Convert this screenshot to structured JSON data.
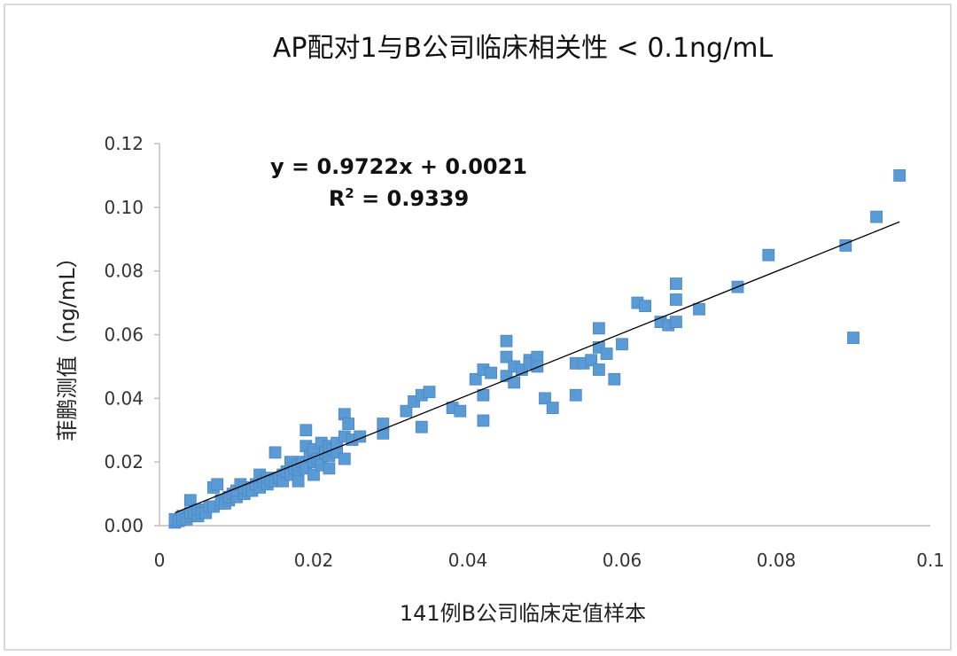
{
  "chart_data": {
    "type": "scatter",
    "title": "AP配对1与B公司临床相关性 < 0.1ng/mL",
    "xlabel": "141例B公司临床定值样本",
    "ylabel": "菲鹏测值（ng/mL）",
    "xlim": [
      0,
      0.1
    ],
    "ylim": [
      0,
      0.12
    ],
    "x_ticks": [
      "0",
      "0.02",
      "0.04",
      "0.06",
      "0.08",
      "0.1"
    ],
    "y_ticks": [
      "0.00",
      "0.02",
      "0.04",
      "0.06",
      "0.08",
      "0.10",
      "0.12"
    ],
    "grid": false,
    "marker_color": "#5b9bd5",
    "trendline_color": "#000000",
    "trendline": {
      "slope": 0.9722,
      "intercept": 0.0021,
      "x_range": [
        0.002,
        0.096
      ]
    },
    "equation": "y = 0.9722x + 0.0021",
    "r_squared_label": "R",
    "r_squared_sup": "2",
    "r_squared_value": " = 0.9339",
    "points": [
      [
        0.002,
        0.001
      ],
      [
        0.002,
        0.002
      ],
      [
        0.0025,
        0.0015
      ],
      [
        0.003,
        0.002
      ],
      [
        0.003,
        0.003
      ],
      [
        0.0035,
        0.002
      ],
      [
        0.004,
        0.003
      ],
      [
        0.004,
        0.004
      ],
      [
        0.004,
        0.008
      ],
      [
        0.0045,
        0.004
      ],
      [
        0.005,
        0.003
      ],
      [
        0.005,
        0.005
      ],
      [
        0.0055,
        0.004
      ],
      [
        0.006,
        0.005
      ],
      [
        0.006,
        0.004
      ],
      [
        0.0065,
        0.006
      ],
      [
        0.007,
        0.006
      ],
      [
        0.007,
        0.012
      ],
      [
        0.0075,
        0.013
      ],
      [
        0.008,
        0.007
      ],
      [
        0.008,
        0.008
      ],
      [
        0.0085,
        0.007
      ],
      [
        0.009,
        0.008
      ],
      [
        0.009,
        0.009
      ],
      [
        0.0095,
        0.01
      ],
      [
        0.01,
        0.009
      ],
      [
        0.01,
        0.011
      ],
      [
        0.0105,
        0.013
      ],
      [
        0.011,
        0.01
      ],
      [
        0.011,
        0.012
      ],
      [
        0.0115,
        0.011
      ],
      [
        0.012,
        0.012
      ],
      [
        0.012,
        0.011
      ],
      [
        0.0125,
        0.013
      ],
      [
        0.013,
        0.012
      ],
      [
        0.013,
        0.016
      ],
      [
        0.0135,
        0.014
      ],
      [
        0.014,
        0.013
      ],
      [
        0.014,
        0.015
      ],
      [
        0.0145,
        0.014
      ],
      [
        0.015,
        0.014
      ],
      [
        0.015,
        0.023
      ],
      [
        0.0155,
        0.015
      ],
      [
        0.016,
        0.016
      ],
      [
        0.016,
        0.014
      ],
      [
        0.0165,
        0.017
      ],
      [
        0.017,
        0.016
      ],
      [
        0.017,
        0.02
      ],
      [
        0.0175,
        0.018
      ],
      [
        0.018,
        0.017
      ],
      [
        0.018,
        0.019
      ],
      [
        0.018,
        0.014
      ],
      [
        0.0185,
        0.02
      ],
      [
        0.019,
        0.018
      ],
      [
        0.019,
        0.03
      ],
      [
        0.019,
        0.025
      ],
      [
        0.0195,
        0.022
      ],
      [
        0.02,
        0.02
      ],
      [
        0.02,
        0.016
      ],
      [
        0.02,
        0.024
      ],
      [
        0.0205,
        0.021
      ],
      [
        0.021,
        0.019
      ],
      [
        0.021,
        0.026
      ],
      [
        0.0215,
        0.023
      ],
      [
        0.022,
        0.022
      ],
      [
        0.022,
        0.018
      ],
      [
        0.022,
        0.025
      ],
      [
        0.0225,
        0.024
      ],
      [
        0.023,
        0.023
      ],
      [
        0.023,
        0.026
      ],
      [
        0.024,
        0.021
      ],
      [
        0.024,
        0.028
      ],
      [
        0.024,
        0.035
      ],
      [
        0.0245,
        0.032
      ],
      [
        0.025,
        0.027
      ],
      [
        0.026,
        0.028
      ],
      [
        0.029,
        0.029
      ],
      [
        0.029,
        0.032
      ],
      [
        0.032,
        0.036
      ],
      [
        0.033,
        0.039
      ],
      [
        0.034,
        0.031
      ],
      [
        0.034,
        0.041
      ],
      [
        0.035,
        0.042
      ],
      [
        0.038,
        0.037
      ],
      [
        0.039,
        0.036
      ],
      [
        0.041,
        0.046
      ],
      [
        0.042,
        0.049
      ],
      [
        0.042,
        0.033
      ],
      [
        0.042,
        0.041
      ],
      [
        0.043,
        0.048
      ],
      [
        0.045,
        0.047
      ],
      [
        0.045,
        0.058
      ],
      [
        0.045,
        0.053
      ],
      [
        0.046,
        0.045
      ],
      [
        0.046,
        0.05
      ],
      [
        0.047,
        0.049
      ],
      [
        0.048,
        0.052
      ],
      [
        0.048,
        0.051
      ],
      [
        0.049,
        0.053
      ],
      [
        0.049,
        0.05
      ],
      [
        0.05,
        0.04
      ],
      [
        0.051,
        0.037
      ],
      [
        0.054,
        0.051
      ],
      [
        0.054,
        0.041
      ],
      [
        0.055,
        0.051
      ],
      [
        0.056,
        0.052
      ],
      [
        0.057,
        0.049
      ],
      [
        0.057,
        0.062
      ],
      [
        0.057,
        0.056
      ],
      [
        0.058,
        0.054
      ],
      [
        0.059,
        0.046
      ],
      [
        0.06,
        0.057
      ],
      [
        0.062,
        0.07
      ],
      [
        0.063,
        0.069
      ],
      [
        0.065,
        0.064
      ],
      [
        0.066,
        0.063
      ],
      [
        0.067,
        0.076
      ],
      [
        0.067,
        0.071
      ],
      [
        0.067,
        0.064
      ],
      [
        0.07,
        0.068
      ],
      [
        0.075,
        0.075
      ],
      [
        0.079,
        0.085
      ],
      [
        0.089,
        0.088
      ],
      [
        0.09,
        0.059
      ],
      [
        0.093,
        0.097
      ],
      [
        0.096,
        0.11
      ]
    ]
  }
}
